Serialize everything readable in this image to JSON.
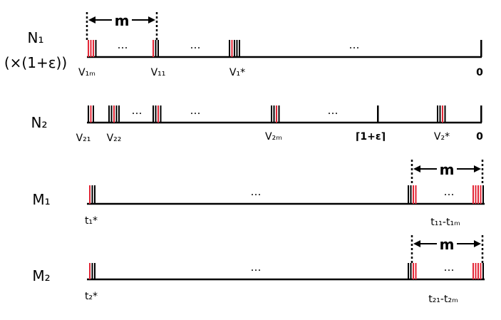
{
  "rows": [
    {
      "id": "n1",
      "label": "N₁",
      "sublabel": "(×(1+ε))",
      "segments": [
        {
          "type": "cluster",
          "colors": [
            "red",
            "red",
            "red",
            "black"
          ]
        },
        {
          "type": "dots",
          "text": "…"
        },
        {
          "type": "cluster",
          "colors": [
            "red",
            "black",
            "black"
          ]
        },
        {
          "type": "dots",
          "text": "…"
        },
        {
          "type": "cluster",
          "colors": [
            "black",
            "red",
            "black",
            "black",
            "black"
          ]
        },
        {
          "type": "dots",
          "text": "…"
        },
        {
          "type": "end"
        }
      ],
      "labels": [
        {
          "text": "V₁ₘ",
          "bold": false
        },
        {
          "text": "V₁₁",
          "bold": false
        },
        {
          "text": "V₁*",
          "bold": false
        },
        {
          "text": "0",
          "bold": true
        }
      ],
      "bracket": {
        "text": "m"
      }
    },
    {
      "id": "n2",
      "label": "N₂",
      "segments": [
        {
          "type": "cluster",
          "colors": [
            "black",
            "red",
            "black"
          ]
        },
        {
          "type": "cluster",
          "colors": [
            "black",
            "black",
            "red",
            "black",
            "black"
          ]
        },
        {
          "type": "dots",
          "text": "…"
        },
        {
          "type": "cluster",
          "colors": [
            "black",
            "black",
            "red",
            "black"
          ]
        },
        {
          "type": "dots",
          "text": "…"
        },
        {
          "type": "cluster",
          "colors": [
            "black",
            "black",
            "red",
            "black"
          ]
        },
        {
          "type": "dots",
          "text": "…"
        },
        {
          "type": "single"
        },
        {
          "type": "cluster",
          "colors": [
            "black",
            "black",
            "red",
            "black"
          ]
        },
        {
          "type": "end"
        }
      ],
      "labels": [
        {
          "text": "V₂₁",
          "bold": false
        },
        {
          "text": "V₂₂",
          "bold": false
        },
        {
          "text": "V₂ₘ",
          "bold": false
        },
        {
          "text": "⌈1+ε⌉",
          "bold": true
        },
        {
          "text": "V₂*",
          "bold": false
        },
        {
          "text": "0",
          "bold": true
        }
      ]
    },
    {
      "id": "m1",
      "label": "M₁",
      "segments": [
        {
          "type": "cluster",
          "colors": [
            "red",
            "black",
            "black"
          ]
        },
        {
          "type": "dots",
          "text": "…"
        },
        {
          "type": "cluster",
          "colors": [
            "black",
            "black",
            "red",
            "red"
          ]
        },
        {
          "type": "dots",
          "text": "…"
        },
        {
          "type": "cluster",
          "colors": [
            "red",
            "red",
            "red",
            "red",
            "black"
          ]
        }
      ],
      "labels": [
        {
          "text": "t₁*",
          "bold": false
        },
        {
          "text": "t₁₁-t₁ₘ",
          "bold": false
        }
      ],
      "bracket": {
        "text": "m"
      }
    },
    {
      "id": "m2",
      "label": "M₂",
      "segments": [
        {
          "type": "cluster",
          "colors": [
            "red",
            "black",
            "black"
          ]
        },
        {
          "type": "dots",
          "text": "…"
        },
        {
          "type": "cluster",
          "colors": [
            "black",
            "black",
            "red",
            "red"
          ]
        },
        {
          "type": "dots",
          "text": "…"
        },
        {
          "type": "cluster",
          "colors": [
            "red",
            "red",
            "red",
            "red",
            "black"
          ]
        }
      ],
      "labels": [
        {
          "text": "t₂*",
          "bold": false
        },
        {
          "text": "t₂₁-t₂ₘ",
          "bold": false
        }
      ],
      "bracket": {
        "text": "m"
      }
    }
  ],
  "colors": {
    "red": "#e32636",
    "black": "#000000"
  }
}
